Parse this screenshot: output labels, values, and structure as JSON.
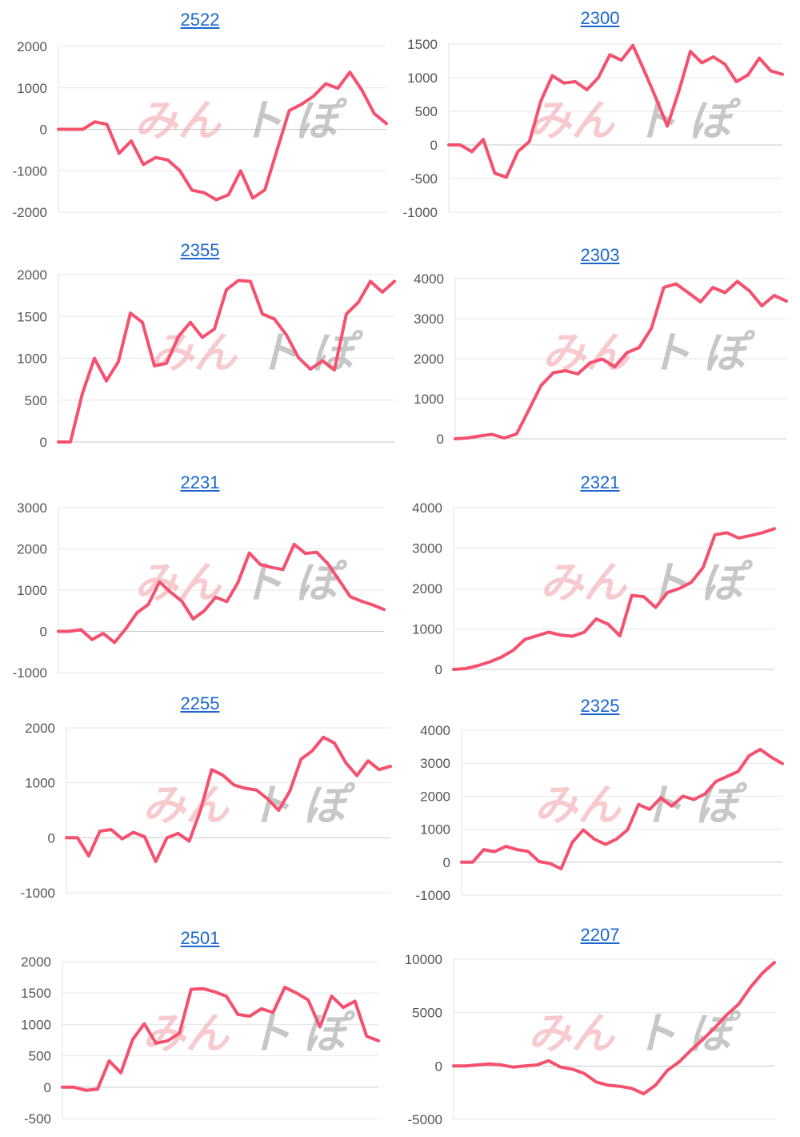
{
  "line_color": "#f5516f",
  "link_color": "#1a66cc",
  "watermark": {
    "text_left": "みん",
    "text_right": "ト ぽ"
  },
  "chart_data": [
    {
      "type": "line",
      "title": "2522",
      "ylim": [
        -2000,
        2000
      ],
      "ticks": [
        2000,
        1000,
        0,
        -1000,
        -2000
      ],
      "values": [
        0,
        0,
        0,
        180,
        120,
        -580,
        -280,
        -850,
        -680,
        -740,
        -1000,
        -1470,
        -1530,
        -1700,
        -1580,
        -1000,
        -1660,
        -1460,
        -500,
        450,
        600,
        800,
        1100,
        990,
        1380,
        940,
        380,
        140
      ]
    },
    {
      "type": "line",
      "title": "2300",
      "ylim": [
        -1000,
        1500
      ],
      "ticks": [
        1500,
        1000,
        500,
        0,
        -500,
        -1000
      ],
      "values": [
        0,
        0,
        -100,
        80,
        -420,
        -480,
        -100,
        50,
        650,
        1030,
        920,
        940,
        820,
        1000,
        1340,
        1260,
        1480,
        1100,
        700,
        280,
        800,
        1390,
        1220,
        1310,
        1200,
        940,
        1040,
        1290,
        1100,
        1050
      ]
    },
    {
      "type": "line",
      "title": "2355",
      "ylim": [
        0,
        2000
      ],
      "ticks": [
        2000,
        1500,
        1000,
        500,
        0
      ],
      "values": [
        0,
        0,
        580,
        1000,
        730,
        960,
        1540,
        1430,
        910,
        940,
        1260,
        1430,
        1250,
        1350,
        1820,
        1930,
        1920,
        1530,
        1470,
        1280,
        1010,
        870,
        970,
        860,
        1530,
        1670,
        1920,
        1790,
        1920
      ]
    },
    {
      "type": "line",
      "title": "2303",
      "ylim": [
        0,
        4000
      ],
      "ticks": [
        4000,
        3000,
        2000,
        1000,
        0
      ],
      "values": [
        0,
        20,
        70,
        110,
        20,
        120,
        720,
        1330,
        1650,
        1700,
        1620,
        1900,
        1990,
        1800,
        2150,
        2280,
        2760,
        3780,
        3870,
        3650,
        3420,
        3780,
        3650,
        3930,
        3690,
        3320,
        3580,
        3440
      ]
    },
    {
      "type": "line",
      "title": "2231",
      "ylim": [
        -1000,
        3000
      ],
      "ticks": [
        3000,
        2000,
        1000,
        0,
        -1000
      ],
      "values": [
        0,
        0,
        40,
        -200,
        -50,
        -270,
        60,
        450,
        650,
        1200,
        950,
        730,
        300,
        500,
        830,
        720,
        1190,
        1900,
        1620,
        1550,
        1500,
        2110,
        1890,
        1920,
        1640,
        1240,
        840,
        730,
        640,
        530
      ]
    },
    {
      "type": "line",
      "title": "2321",
      "ylim": [
        0,
        4000
      ],
      "ticks": [
        4000,
        3000,
        2000,
        1000,
        0
      ],
      "values": [
        0,
        20,
        90,
        180,
        300,
        470,
        740,
        830,
        920,
        850,
        820,
        920,
        1250,
        1120,
        830,
        1830,
        1800,
        1530,
        1900,
        2000,
        2150,
        2520,
        3330,
        3380,
        3250,
        3310,
        3380,
        3480
      ]
    },
    {
      "type": "line",
      "title": "2255",
      "ylim": [
        -1000,
        2000
      ],
      "ticks": [
        2000,
        1000,
        0,
        -1000
      ],
      "values": [
        0,
        0,
        -330,
        120,
        150,
        -20,
        100,
        20,
        -430,
        0,
        80,
        -60,
        500,
        1240,
        1140,
        960,
        900,
        870,
        710,
        500,
        850,
        1430,
        1580,
        1830,
        1720,
        1370,
        1130,
        1400,
        1240,
        1300
      ]
    },
    {
      "type": "line",
      "title": "2325",
      "ylim": [
        -1000,
        4000
      ],
      "ticks": [
        4000,
        3000,
        2000,
        1000,
        0,
        -1000
      ],
      "values": [
        0,
        0,
        380,
        320,
        480,
        380,
        330,
        20,
        -40,
        -200,
        600,
        980,
        700,
        540,
        700,
        980,
        1750,
        1600,
        1950,
        1700,
        2000,
        1900,
        2070,
        2450,
        2600,
        2750,
        3230,
        3420,
        3180,
        2990
      ]
    },
    {
      "type": "line",
      "title": "2501",
      "ylim": [
        -500,
        2000
      ],
      "ticks": [
        2000,
        1500,
        1000,
        500,
        0,
        -500
      ],
      "values": [
        0,
        0,
        -50,
        -30,
        420,
        230,
        760,
        1010,
        700,
        740,
        860,
        1560,
        1570,
        1520,
        1450,
        1160,
        1130,
        1250,
        1190,
        1590,
        1500,
        1390,
        960,
        1450,
        1270,
        1370,
        810,
        740
      ]
    },
    {
      "type": "line",
      "title": "2207",
      "ylim": [
        -5000,
        10000
      ],
      "ticks": [
        10000,
        5000,
        0,
        -5000
      ],
      "values": [
        0,
        0,
        100,
        200,
        100,
        -100,
        0,
        100,
        500,
        -100,
        -300,
        -700,
        -1500,
        -1800,
        -1900,
        -2100,
        -2600,
        -1800,
        -400,
        400,
        1500,
        2500,
        3600,
        4800,
        5800,
        7400,
        8700,
        9700
      ]
    }
  ]
}
